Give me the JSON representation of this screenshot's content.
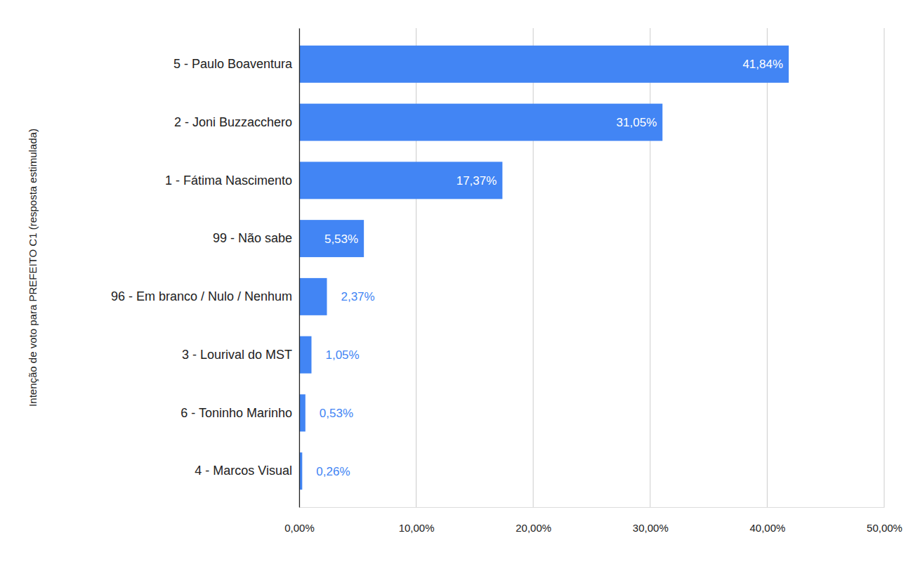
{
  "chart_data": {
    "type": "bar",
    "orientation": "horizontal",
    "ylabel": "Intenção de voto para PREFEITO C1 (resposta estimulada)",
    "categories": [
      "5 - Paulo Boaventura",
      "2 - Joni Buzzacchero",
      "1 - Fátima Nascimento",
      "99 - Não sabe",
      "96 - Em branco / Nulo / Nenhum",
      "3 - Lourival do MST",
      "6 - Toninho Marinho",
      "4 - Marcos Visual"
    ],
    "values": [
      41.84,
      31.05,
      17.37,
      5.53,
      2.37,
      1.05,
      0.53,
      0.26
    ],
    "value_labels": [
      "41,84%",
      "31,05%",
      "17,37%",
      "5,53%",
      "2,37%",
      "1,05%",
      "0,53%",
      "0,26%"
    ],
    "color": "#4285f4",
    "xlim": [
      0,
      50
    ],
    "xticks": [
      {
        "value": 0,
        "label": "0,00%"
      },
      {
        "value": 10,
        "label": "10,00%"
      },
      {
        "value": 20,
        "label": "20,00%"
      },
      {
        "value": 30,
        "label": "30,00%"
      },
      {
        "value": 40,
        "label": "40,00%"
      },
      {
        "value": 50,
        "label": "50,00%"
      }
    ],
    "grid": true,
    "data_labels": true
  }
}
